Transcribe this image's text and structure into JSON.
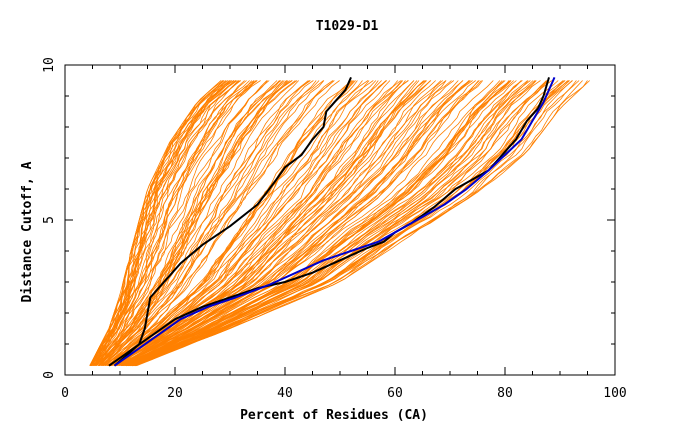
{
  "chart_data": {
    "type": "line",
    "title": "T1029-D1",
    "xlabel": "Percent of Residues (CA)",
    "ylabel": "Distance Cutoff, A",
    "xlim": [
      0,
      100
    ],
    "ylim": [
      0,
      10
    ],
    "x_ticks": [
      "0",
      "20",
      "40",
      "60",
      "80",
      "100"
    ],
    "y_ticks": [
      "0",
      "5",
      "10"
    ],
    "x_minor_step": 5,
    "y_minor_step": 1,
    "colors": {
      "background_models": "#ff8000",
      "highlight_black": "#000000",
      "highlight_blue": "#0000cc"
    },
    "background_models": {
      "count": 160,
      "left_envelope": [
        [
          4.5,
          0.3
        ],
        [
          8,
          1.5
        ],
        [
          10,
          2.6
        ],
        [
          12,
          4.0
        ],
        [
          15,
          6.0
        ],
        [
          19,
          7.5
        ],
        [
          24,
          8.8
        ],
        [
          29,
          9.6
        ]
      ],
      "right_envelope": [
        [
          13,
          0.3
        ],
        [
          30,
          1.5
        ],
        [
          50,
          3.0
        ],
        [
          63,
          4.5
        ],
        [
          75,
          5.8
        ],
        [
          84,
          7.2
        ],
        [
          90,
          8.6
        ],
        [
          96,
          9.6
        ]
      ]
    },
    "series": [
      {
        "color": "#000000",
        "points": [
          [
            9,
            0.3
          ],
          [
            11,
            0.6
          ],
          [
            13.5,
            1.0
          ],
          [
            14.5,
            1.5
          ],
          [
            15.5,
            2.5
          ],
          [
            18,
            3.0
          ],
          [
            21,
            3.6
          ],
          [
            25,
            4.2
          ],
          [
            30,
            4.8
          ],
          [
            35,
            5.5
          ],
          [
            38,
            6.2
          ],
          [
            40,
            6.7
          ],
          [
            43,
            7.1
          ],
          [
            45,
            7.6
          ],
          [
            47,
            8.0
          ],
          [
            47.5,
            8.5
          ],
          [
            49,
            8.8
          ],
          [
            51,
            9.2
          ],
          [
            52,
            9.6
          ]
        ]
      },
      {
        "color": "#000000",
        "points": [
          [
            8,
            0.3
          ],
          [
            12,
            0.8
          ],
          [
            16,
            1.3
          ],
          [
            20,
            1.8
          ],
          [
            25,
            2.2
          ],
          [
            30,
            2.5
          ],
          [
            35,
            2.8
          ],
          [
            40,
            3.0
          ],
          [
            45,
            3.3
          ],
          [
            50,
            3.7
          ],
          [
            55,
            4.1
          ],
          [
            58,
            4.3
          ],
          [
            60,
            4.6
          ],
          [
            63,
            4.9
          ],
          [
            67,
            5.4
          ],
          [
            71,
            6.0
          ],
          [
            74,
            6.3
          ],
          [
            77,
            6.6
          ],
          [
            79,
            7.0
          ],
          [
            82,
            7.6
          ],
          [
            84,
            8.2
          ],
          [
            86,
            8.6
          ],
          [
            87,
            9.0
          ],
          [
            88,
            9.6
          ]
        ]
      },
      {
        "color": "#0000cc",
        "points": [
          [
            9,
            0.3
          ],
          [
            13,
            0.8
          ],
          [
            17,
            1.3
          ],
          [
            21,
            1.8
          ],
          [
            26,
            2.2
          ],
          [
            31,
            2.5
          ],
          [
            37,
            2.9
          ],
          [
            42,
            3.3
          ],
          [
            47,
            3.7
          ],
          [
            52,
            4.0
          ],
          [
            57,
            4.3
          ],
          [
            61,
            4.7
          ],
          [
            65,
            5.1
          ],
          [
            69,
            5.5
          ],
          [
            73,
            6.0
          ],
          [
            77,
            6.6
          ],
          [
            80,
            7.1
          ],
          [
            83,
            7.6
          ],
          [
            85,
            8.2
          ],
          [
            87,
            8.8
          ],
          [
            89,
            9.6
          ]
        ]
      }
    ]
  }
}
